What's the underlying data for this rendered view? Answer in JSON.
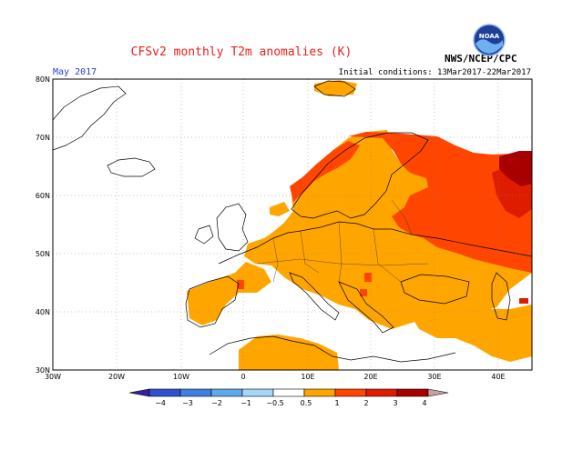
{
  "title": "CFSv2 monthly T2m anomalies (K)",
  "month": "May 2017",
  "initial_conditions": "Initial conditions: 13Mar2017-22Mar2017",
  "credit": "NWS/NCEP/CPC",
  "logo_text": "NOAA",
  "axes": {
    "lon_labels": [
      "30W",
      "20W",
      "10W",
      "0",
      "10E",
      "20E",
      "30E",
      "40E"
    ],
    "lat_labels": [
      "80N",
      "70N",
      "60N",
      "50N",
      "40N",
      "30N"
    ]
  },
  "colorbar": {
    "labels": [
      "−4",
      "−3",
      "−2",
      "−1",
      "−0.5",
      "0.5",
      "1",
      "2",
      "3",
      "4"
    ],
    "colors": [
      "#3a1fa8",
      "#3050d0",
      "#3f7fe0",
      "#5fa8ea",
      "#a6d6f7",
      "#ffffff",
      "#ffa500",
      "#ff4500",
      "#e01c00",
      "#a80000",
      "#c8a0a0"
    ]
  },
  "colors": {
    "title": "#e8201c",
    "month": "#2040d8",
    "orange": "#ffa500",
    "red_orange": "#ff4500",
    "red": "#e01c00",
    "dark_red": "#a80000"
  }
}
